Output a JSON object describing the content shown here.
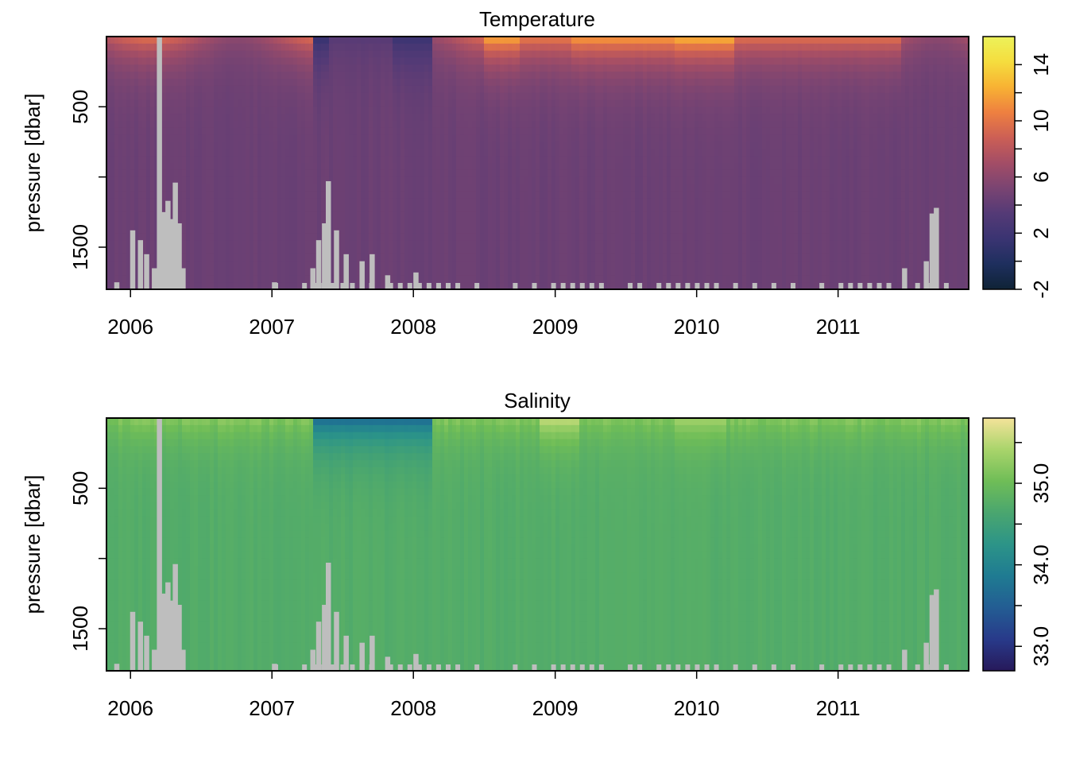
{
  "chart_data": [
    {
      "type": "heatmap",
      "title": "Temperature",
      "xlabel": "",
      "ylabel": "pressure [dbar]",
      "x_axis": {
        "type": "time",
        "range": [
          "2005-10-31",
          "2011-12-04"
        ],
        "tick_labels": [
          "2006",
          "2007",
          "2008",
          "2009",
          "2010",
          "2011"
        ]
      },
      "y_axis": {
        "range": [
          0,
          1800
        ],
        "reversed": true,
        "ticks": [
          500,
          1000,
          1500
        ],
        "tick_labels": [
          "500",
          "",
          "1500"
        ]
      },
      "colorbar": {
        "range": [
          -2,
          16
        ],
        "ticks": [
          -2,
          0,
          2,
          4,
          6,
          8,
          10,
          12,
          14
        ],
        "tick_labels": [
          "-2",
          "",
          "2",
          "",
          "6",
          "",
          "10",
          "",
          "14"
        ],
        "palette": [
          "#0f2336",
          "#1e2f5e",
          "#3a3472",
          "#543a76",
          "#7a4472",
          "#a34d66",
          "#cc5f55",
          "#ee8040",
          "#f8b233",
          "#f5dd3e",
          "#ecf25a"
        ]
      },
      "missing_color": "#bebebe",
      "missing_data_profiles_top_pressure": [
        {
          "date": "2005-11-20",
          "p": 1750
        },
        {
          "date": "2005-12-31",
          "p": 1380
        },
        {
          "date": "2006-01-20",
          "p": 1450
        },
        {
          "date": "2006-02-05",
          "p": 1550
        },
        {
          "date": "2006-02-25",
          "p": 1650
        },
        {
          "date": "2006-03-10",
          "p": 0
        },
        {
          "date": "2006-03-20",
          "p": 1250
        },
        {
          "date": "2006-04-01",
          "p": 1170
        },
        {
          "date": "2006-04-12",
          "p": 1300
        },
        {
          "date": "2006-04-20",
          "p": 1040
        },
        {
          "date": "2006-04-30",
          "p": 1330
        },
        {
          "date": "2006-05-10",
          "p": 1650
        },
        {
          "date": "2007-01-01",
          "p": 1750
        },
        {
          "date": "2007-04-10",
          "p": 1650
        },
        {
          "date": "2007-04-25",
          "p": 1450
        },
        {
          "date": "2007-05-10",
          "p": 1330
        },
        {
          "date": "2007-05-20",
          "p": 1030
        },
        {
          "date": "2007-06-10",
          "p": 1380
        },
        {
          "date": "2007-07-05",
          "p": 1550
        },
        {
          "date": "2007-08-15",
          "p": 1600
        },
        {
          "date": "2007-09-10",
          "p": 1550
        },
        {
          "date": "2007-10-20",
          "p": 1700
        },
        {
          "date": "2008-01-01",
          "p": 1680
        },
        {
          "date": "2011-06-15",
          "p": 1650
        },
        {
          "date": "2011-08-10",
          "p": 1600
        },
        {
          "date": "2011-08-25",
          "p": 1260
        },
        {
          "date": "2011-09-05",
          "p": 1220
        }
      ]
    },
    {
      "type": "heatmap",
      "title": "Salinity",
      "xlabel": "",
      "ylabel": "pressure [dbar]",
      "x_axis": {
        "type": "time",
        "range": [
          "2005-10-31",
          "2011-12-04"
        ],
        "tick_labels": [
          "2006",
          "2007",
          "2008",
          "2009",
          "2010",
          "2011"
        ]
      },
      "y_axis": {
        "range": [
          0,
          1800
        ],
        "reversed": true,
        "ticks": [
          500,
          1000,
          1500
        ],
        "tick_labels": [
          "500",
          "",
          "1500"
        ]
      },
      "colorbar": {
        "range": [
          32.7,
          35.8
        ],
        "ticks": [
          33.0,
          33.5,
          34.0,
          34.5,
          35.0,
          35.5
        ],
        "tick_labels": [
          "33.0",
          "",
          "34.0",
          "",
          "35.0",
          ""
        ],
        "palette": [
          "#27195a",
          "#283a8a",
          "#235d93",
          "#1f7b92",
          "#2c9488",
          "#4aa66f",
          "#6fbd57",
          "#a9d46b",
          "#f4e39a"
        ]
      },
      "missing_color": "#bebebe"
    }
  ]
}
